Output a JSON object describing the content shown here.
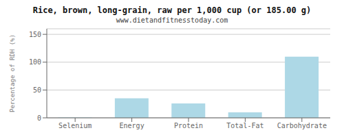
{
  "chart_data": {
    "type": "bar",
    "title": "Rice, brown, long-grain, raw per 1,000 cup (or 185.00 g)",
    "subtitle": "www.dietandfitnesstoday.com",
    "categories": [
      "Selenium",
      "Energy",
      "Protein",
      "Total-Fat",
      "Carbohydrate"
    ],
    "values": [
      0.5,
      35,
      26,
      10,
      110
    ],
    "color": "#add8e6",
    "ylim": [
      0,
      160
    ],
    "yticks": [
      0,
      50,
      100,
      150
    ],
    "ylabel": "Percentage of RDH (%)",
    "grid": true
  }
}
